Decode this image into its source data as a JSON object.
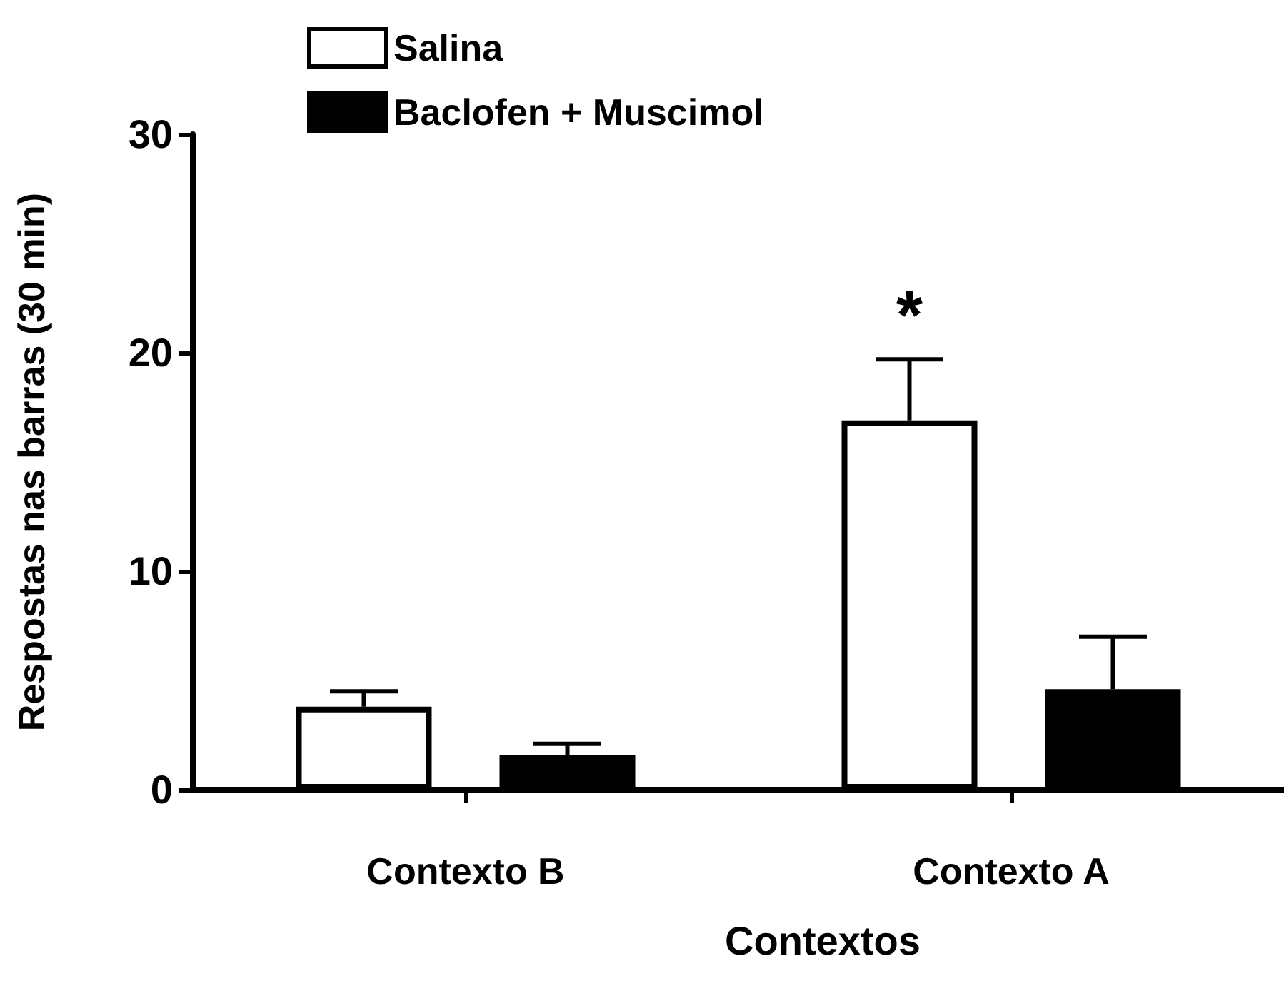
{
  "chart_data": {
    "type": "bar",
    "xlabel": "Contextos",
    "ylabel": "Respostas nas barras (30 min)",
    "categories": [
      "Contexto B",
      "Contexto A"
    ],
    "series": [
      {
        "name": "Salina",
        "color": "#ffffff",
        "values": [
          3.8,
          16.9
        ],
        "errors": [
          [
            3.8,
            4.5
          ],
          [
            16.9,
            19.7
          ]
        ]
      },
      {
        "name": "Baclofen + Muscimol",
        "color": "#000000",
        "values": [
          1.6,
          4.6
        ],
        "errors": [
          [
            1.6,
            2.1
          ],
          [
            4.6,
            7.0
          ]
        ]
      }
    ],
    "ylim": [
      0,
      30
    ],
    "yticks": [
      0,
      10,
      20,
      30
    ],
    "grid": false,
    "legend": "top left",
    "annotations": [
      "*"
    ]
  }
}
